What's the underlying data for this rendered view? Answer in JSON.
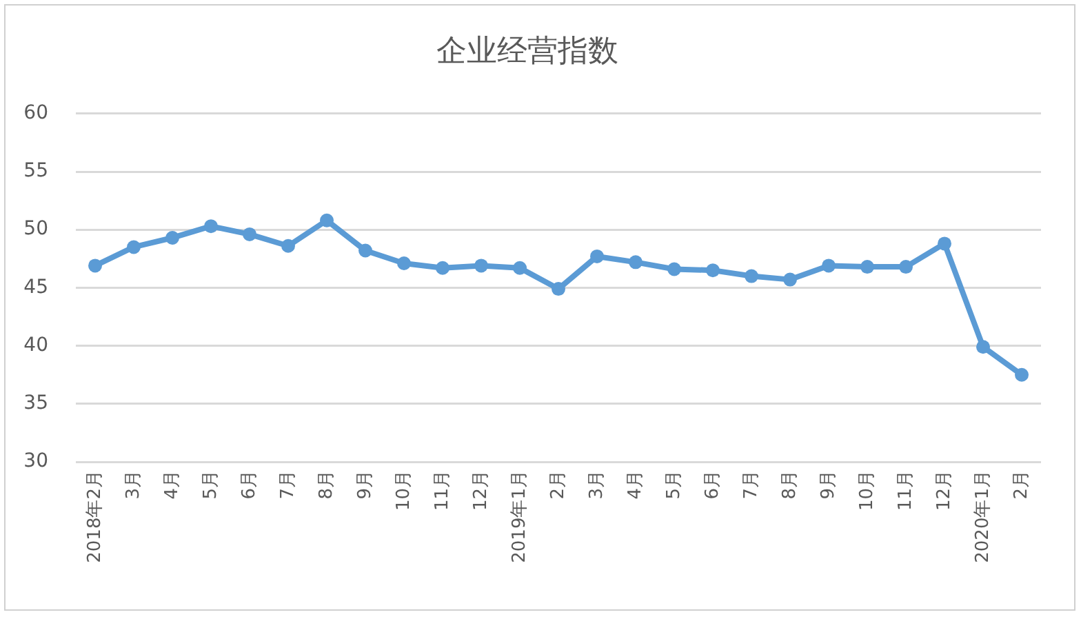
{
  "chart_data": {
    "type": "line",
    "title": "企业经营指数",
    "categories": [
      "2018年2月",
      "3月",
      "4月",
      "5月",
      "6月",
      "7月",
      "8月",
      "9月",
      "10月",
      "11月",
      "12月",
      "2019年1月",
      "2月",
      "3月",
      "4月",
      "5月",
      "6月",
      "7月",
      "8月",
      "9月",
      "10月",
      "11月",
      "12月",
      "2020年1月",
      "2月"
    ],
    "series": [
      {
        "color": "#5b9bd5",
        "values": [
          46.9,
          48.5,
          49.3,
          50.3,
          49.6,
          48.6,
          50.8,
          48.2,
          47.1,
          46.7,
          46.9,
          46.7,
          44.9,
          47.7,
          47.2,
          46.6,
          46.5,
          46.0,
          45.7,
          46.9,
          46.8,
          46.8,
          48.8,
          39.9,
          37.5
        ]
      }
    ],
    "ylim": [
      30,
      60
    ],
    "yticks": [
      30,
      35,
      40,
      45,
      50,
      55,
      60
    ],
    "grid": "y",
    "marker": "circle",
    "line_style": "solid",
    "legend": false
  }
}
